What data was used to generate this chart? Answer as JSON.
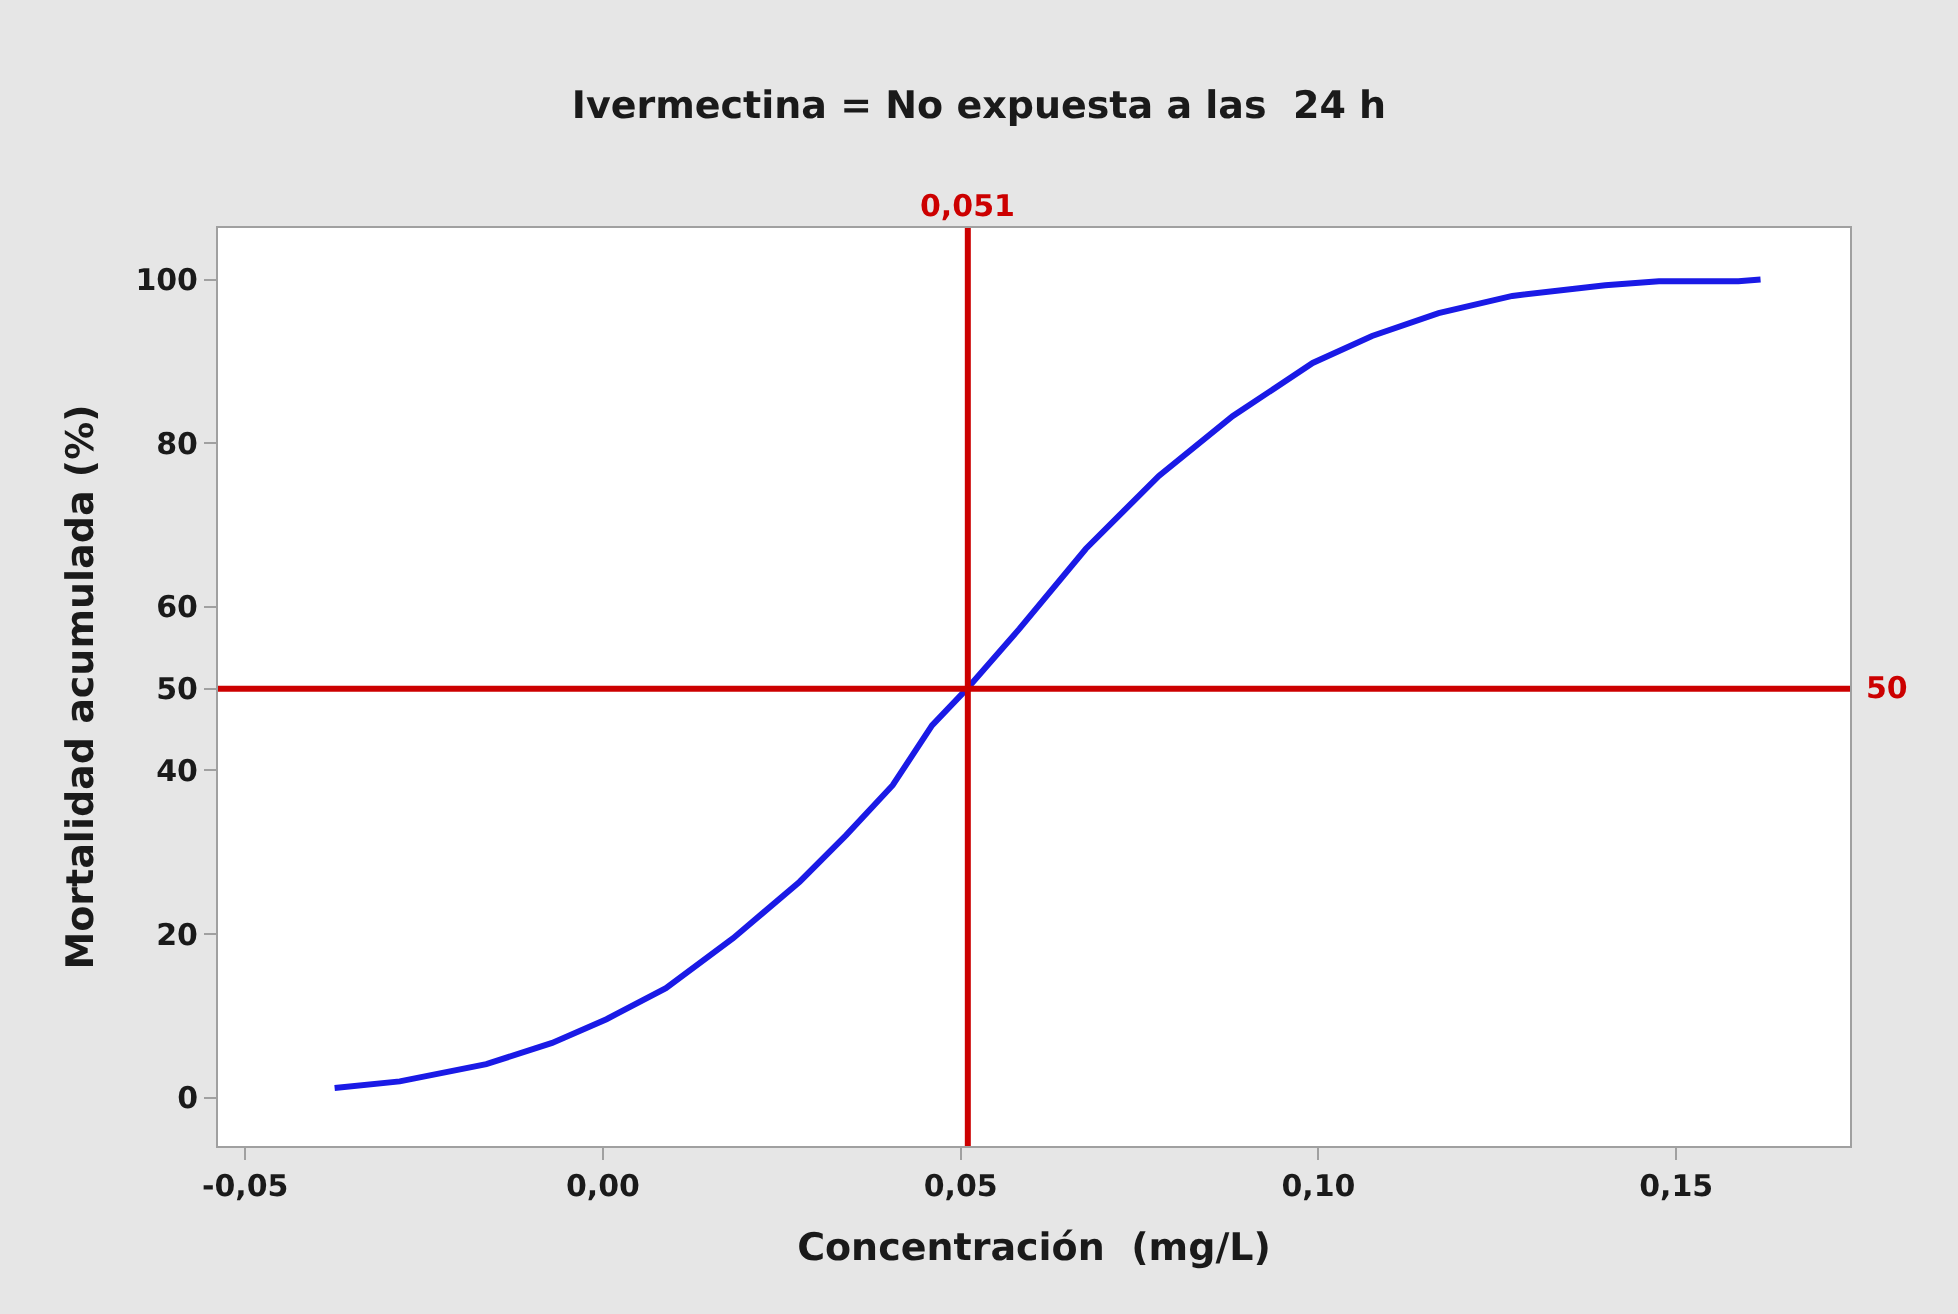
{
  "chart_data": {
    "type": "line",
    "title": "Ivermectina = No expuesta a las  24 h",
    "xlabel": "Concentración  (mg/L)",
    "ylabel": "Mortalidad acumulada (%)",
    "x": [
      -0.0375,
      -0.0284,
      -0.0163,
      -0.0071,
      0.0005,
      0.0088,
      0.0182,
      0.0275,
      0.034,
      0.0405,
      0.046,
      0.0509,
      0.0582,
      0.0675,
      0.0777,
      0.088,
      0.0992,
      0.1075,
      0.1168,
      0.1271,
      0.1401,
      0.1476,
      0.1587,
      0.1618
    ],
    "series": [
      {
        "color": "#1a1ae6",
        "values": [
          1.2,
          2.0,
          4.1,
          6.7,
          9.6,
          13.4,
          19.5,
          26.4,
          32.1,
          38.2,
          45.5,
          50,
          57.3,
          67.1,
          76.0,
          83.3,
          89.8,
          93.1,
          95.9,
          98.0,
          99.3,
          99.8,
          99.8,
          100
        ]
      }
    ],
    "xlim": [
      -0.0538,
      0.1743
    ],
    "ylim": [
      -5.9,
      106.3
    ],
    "xticks": [
      {
        "value": -0.05,
        "label": "-0,05"
      },
      {
        "value": 0,
        "label": "0,00"
      },
      {
        "value": 0.05,
        "label": "0,05"
      },
      {
        "value": 0.1,
        "label": "0,10"
      },
      {
        "value": 0.15,
        "label": "0,15"
      }
    ],
    "yticks": [
      0,
      20,
      40,
      50,
      60,
      80,
      100
    ],
    "ref_lines": [
      {
        "axis": "x",
        "value": 0.051,
        "label": "0,051",
        "color": "#cc0000"
      },
      {
        "axis": "y",
        "value": 50,
        "label": "50",
        "color": "#cc0000"
      }
    ],
    "marker": "none",
    "line_style": "solid"
  }
}
